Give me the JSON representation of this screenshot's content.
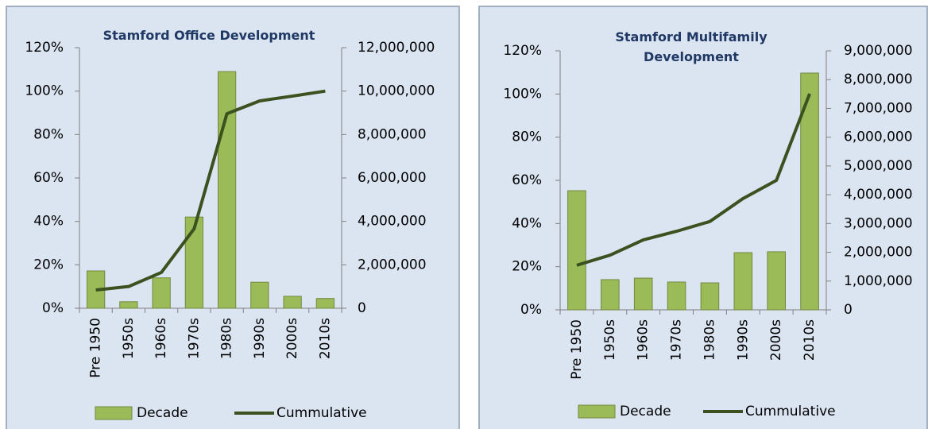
{
  "chart_data": [
    {
      "type": "combo",
      "title": "Stamford Office Development",
      "categories": [
        "Pre 1950",
        "1950s",
        "1960s",
        "1970s",
        "1980s",
        "1990s",
        "2000s",
        "2010s"
      ],
      "series": [
        {
          "name": "Decade",
          "type": "bar",
          "color": "#9bbb59",
          "values": [
            17.2,
            3,
            14,
            42,
            109,
            12,
            5.5,
            4.5
          ]
        },
        {
          "name": "Cummulative",
          "type": "line",
          "axis": "y2",
          "color": "#3b5220",
          "values": [
            840000,
            1000000,
            1650000,
            3660000,
            8960000,
            9550000,
            9770000,
            10000000
          ]
        }
      ],
      "ylim": [
        0,
        120
      ],
      "yticks": [
        {
          "value": 0,
          "label": "0%"
        },
        {
          "value": 20,
          "label": "20%"
        },
        {
          "value": 40,
          "label": "40%"
        },
        {
          "value": 60,
          "label": "60%"
        },
        {
          "value": 80,
          "label": "80%"
        },
        {
          "value": 100,
          "label": "100%"
        },
        {
          "value": 120,
          "label": "120%"
        }
      ],
      "y2lim": [
        0,
        12000000
      ],
      "y2ticks": [
        0,
        {
          "value": 2000000,
          "label": "2,000,000"
        },
        {
          "value": 4000000,
          "label": "4,000,000"
        },
        {
          "value": 6000000,
          "label": "6,000,000"
        },
        {
          "value": 8000000,
          "label": "8,000,000"
        },
        {
          "value": 10000000,
          "label": "10,000,000"
        },
        {
          "value": 12000000,
          "label": "12,000,000"
        }
      ],
      "legend": "bottom"
    },
    {
      "type": "combo",
      "title": "Stamford Multifamily Development",
      "categories": [
        "Pre 1950",
        "1950s",
        "1960s",
        "1970s",
        "1980s",
        "1990s",
        "2000s",
        "2010s"
      ],
      "series": [
        {
          "name": "Decade",
          "type": "bar",
          "color": "#9bbb59",
          "values": [
            55.2,
            14,
            14.7,
            12.9,
            12.5,
            26.5,
            26.9,
            109.7
          ]
        },
        {
          "name": "Cummulative",
          "type": "line",
          "axis": "y2",
          "color": "#3b5220",
          "values": [
            1550000,
            1900000,
            2430000,
            2730000,
            3070000,
            3870000,
            4500000,
            7510000
          ]
        }
      ],
      "ylim": [
        0,
        120
      ],
      "yticks": [
        {
          "value": 0,
          "label": "0%"
        },
        {
          "value": 20,
          "label": "20%"
        },
        {
          "value": 40,
          "label": "40%"
        },
        {
          "value": 60,
          "label": "60%"
        },
        {
          "value": 80,
          "label": "80%"
        },
        {
          "value": 100,
          "label": "100%"
        },
        {
          "value": 120,
          "label": "120%"
        }
      ],
      "y2lim": [
        0,
        9000000
      ],
      "y2ticks": [
        0,
        {
          "value": 1000000,
          "label": "1,000,000"
        },
        {
          "value": 2000000,
          "label": "2,000,000"
        },
        {
          "value": 3000000,
          "label": "3,000,000"
        },
        {
          "value": 4000000,
          "label": "4,000,000"
        },
        {
          "value": 5000000,
          "label": "5,000,000"
        },
        {
          "value": 6000000,
          "label": "6,000,000"
        },
        {
          "value": 7000000,
          "label": "7,000,000"
        },
        {
          "value": 8000000,
          "label": "8,000,000"
        },
        {
          "value": 9000000,
          "label": "9,000,000"
        }
      ],
      "legend": "bottom"
    }
  ]
}
